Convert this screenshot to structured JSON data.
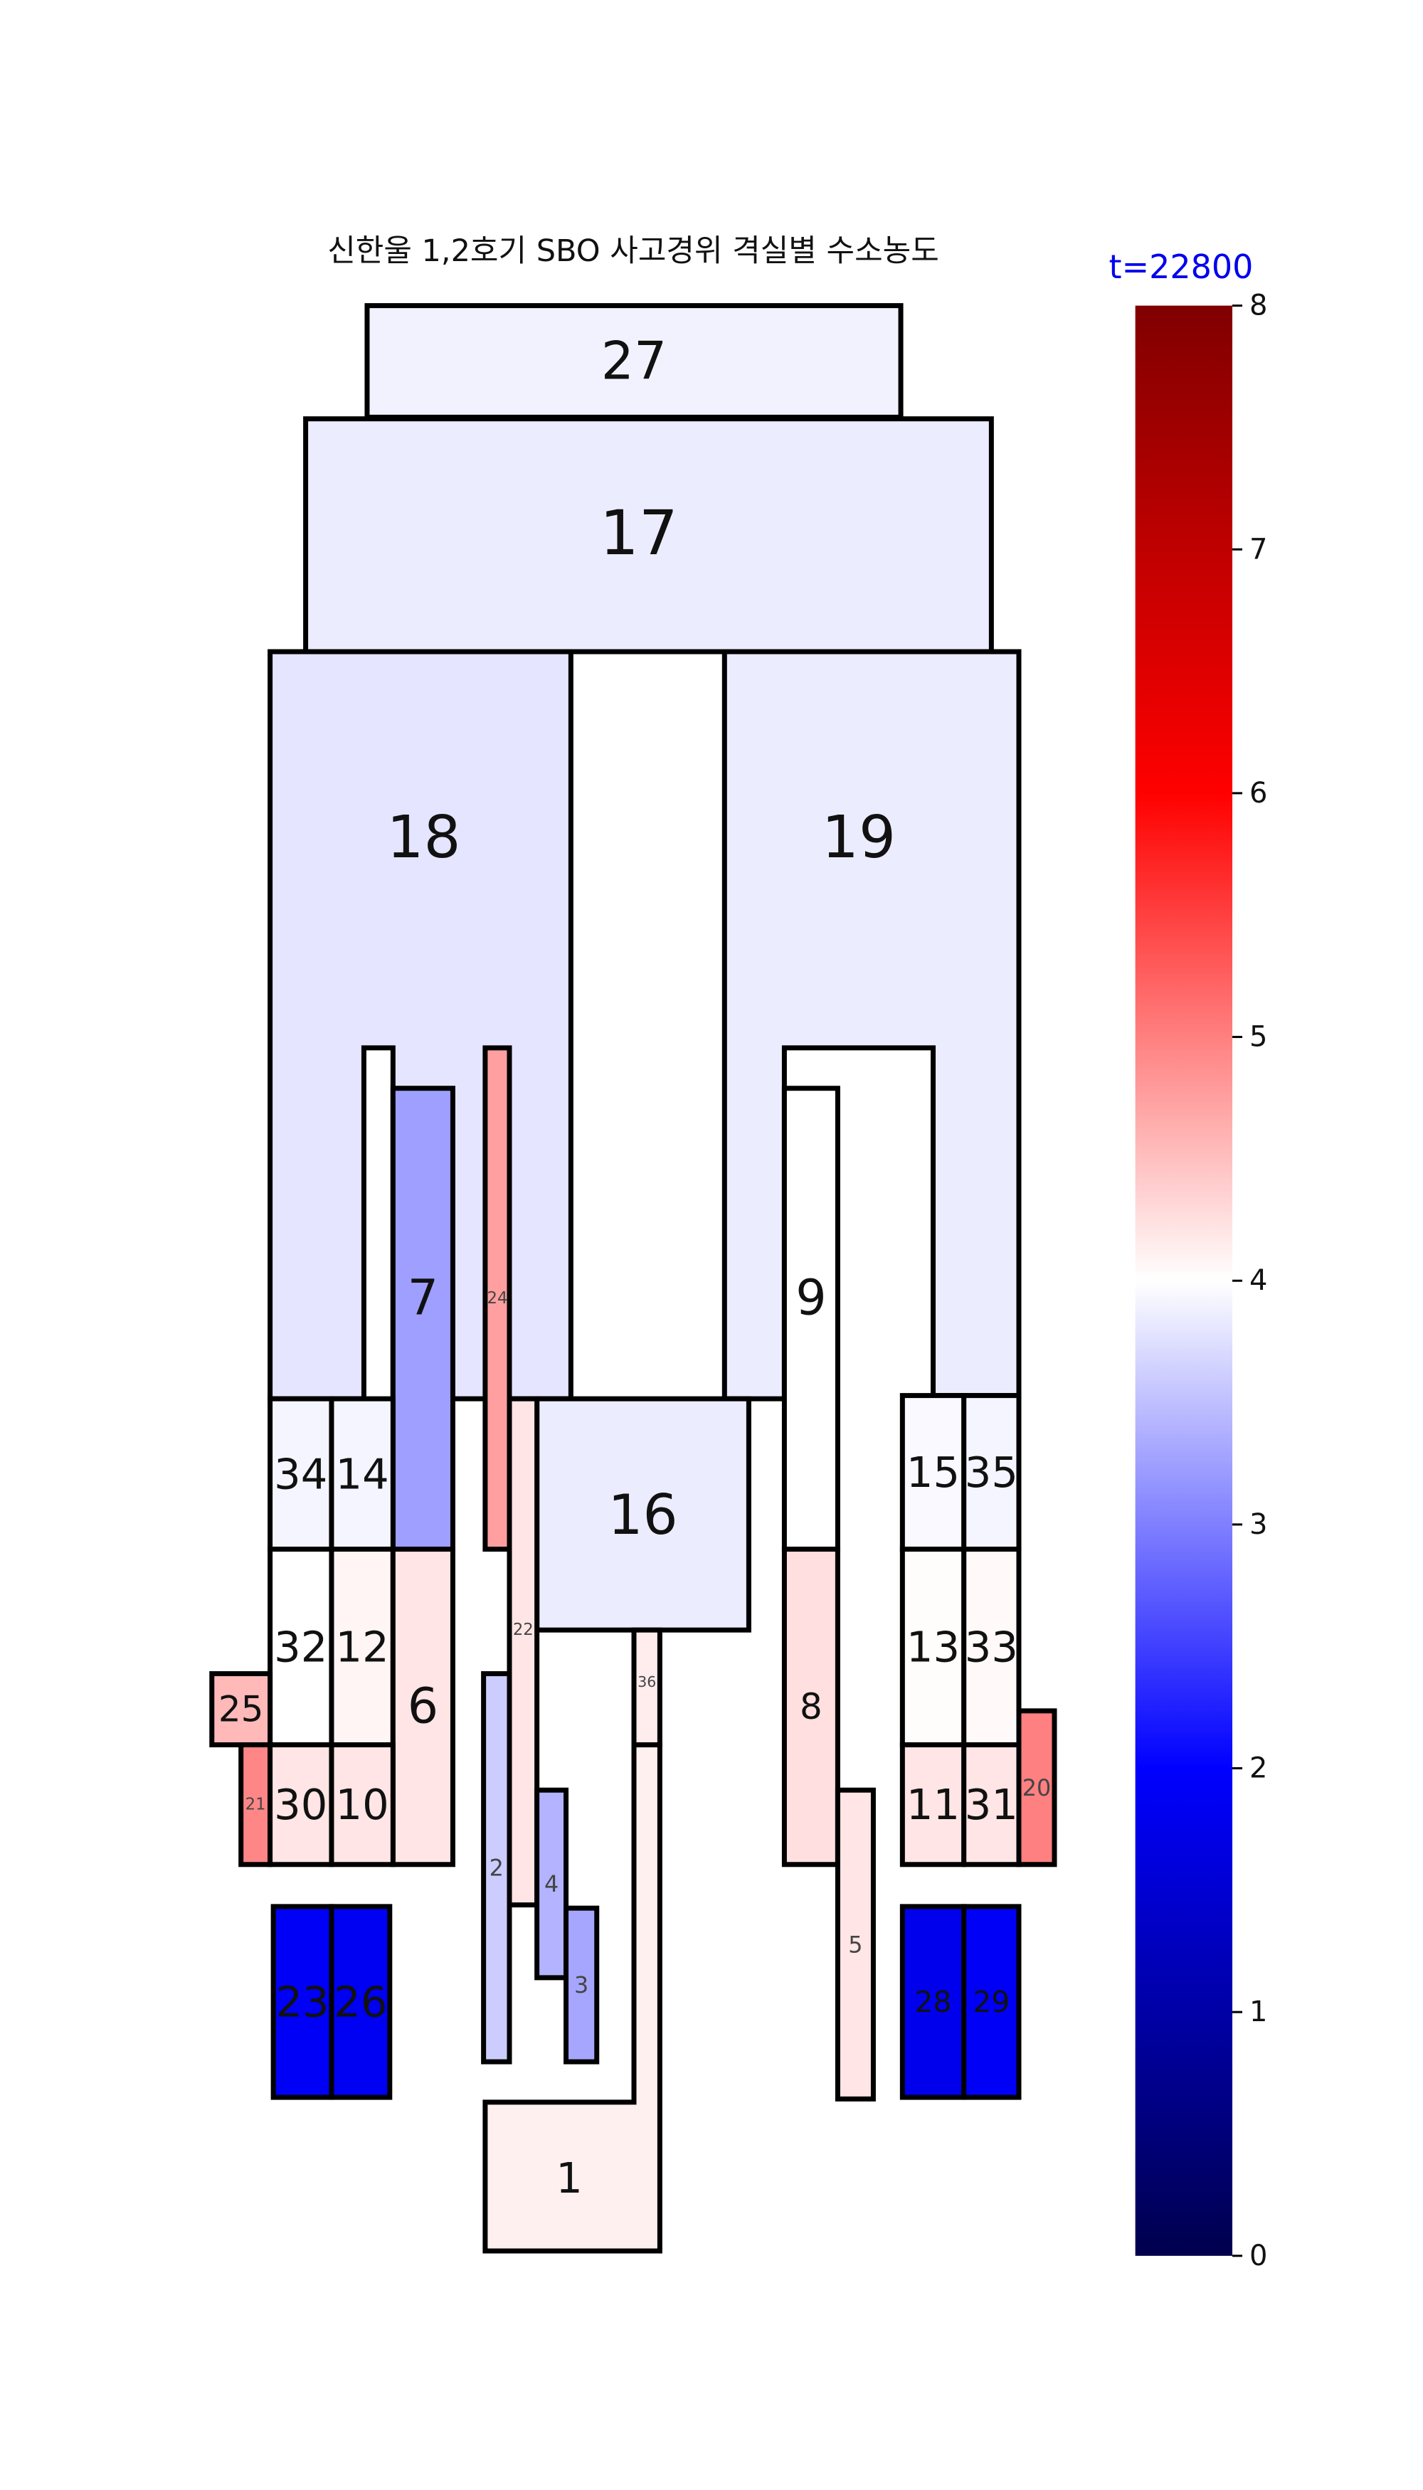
{
  "figure": {
    "title": "신한울 1,2호기 SBO 사고경위 격실별 수소농도",
    "time_label": "t=22800"
  },
  "colorbar": {
    "min": 0,
    "max": 8,
    "ticks": [
      "0",
      "1",
      "2",
      "3",
      "4",
      "5",
      "6",
      "7",
      "8"
    ],
    "colormap": "seismic",
    "stops": [
      "#00004d",
      "#0000ff",
      "#ffffff",
      "#ff0000",
      "#800000"
    ]
  },
  "rooms": [
    {
      "id": "27",
      "label": "27",
      "value": 3.9
    },
    {
      "id": "17",
      "label": "17",
      "value": 3.85
    },
    {
      "id": "18",
      "label": "18",
      "value": 3.8
    },
    {
      "id": "19",
      "label": "19",
      "value": 3.85
    },
    {
      "id": "7",
      "label": "7",
      "value": 3.25
    },
    {
      "id": "24",
      "label": "24",
      "value": 4.75
    },
    {
      "id": "9",
      "label": "9",
      "value": 4.0
    },
    {
      "id": "34",
      "label": "34",
      "value": 3.92
    },
    {
      "id": "14",
      "label": "14",
      "value": 3.92
    },
    {
      "id": "16",
      "label": "16",
      "value": 3.85
    },
    {
      "id": "22",
      "label": "22",
      "value": 4.2
    },
    {
      "id": "15",
      "label": "15",
      "value": 3.95
    },
    {
      "id": "35",
      "label": "35",
      "value": 3.92
    },
    {
      "id": "32",
      "label": "32",
      "value": 4.0
    },
    {
      "id": "12",
      "label": "12",
      "value": 4.08
    },
    {
      "id": "6",
      "label": "6",
      "value": 4.2
    },
    {
      "id": "36",
      "label": "36",
      "value": 4.15
    },
    {
      "id": "8",
      "label": "8",
      "value": 4.25
    },
    {
      "id": "13",
      "label": "13",
      "value": 4.02
    },
    {
      "id": "33",
      "label": "33",
      "value": 4.05
    },
    {
      "id": "25",
      "label": "25",
      "value": 4.55
    },
    {
      "id": "21",
      "label": "21",
      "value": 4.95
    },
    {
      "id": "30",
      "label": "30",
      "value": 4.2
    },
    {
      "id": "10",
      "label": "10",
      "value": 4.2
    },
    {
      "id": "11",
      "label": "11",
      "value": 4.2
    },
    {
      "id": "31",
      "label": "31",
      "value": 4.2
    },
    {
      "id": "20",
      "label": "20",
      "value": 5.0
    },
    {
      "id": "2",
      "label": "2",
      "value": 3.6
    },
    {
      "id": "4",
      "label": "4",
      "value": 3.4
    },
    {
      "id": "3",
      "label": "3",
      "value": 3.3
    },
    {
      "id": "5",
      "label": "5",
      "value": 4.2
    },
    {
      "id": "23",
      "label": "23",
      "value": 1.9
    },
    {
      "id": "26",
      "label": "26",
      "value": 1.85
    },
    {
      "id": "28",
      "label": "28",
      "value": 1.8
    },
    {
      "id": "29",
      "label": "29",
      "value": 1.9
    },
    {
      "id": "1",
      "label": "1",
      "value": 4.12
    }
  ]
}
